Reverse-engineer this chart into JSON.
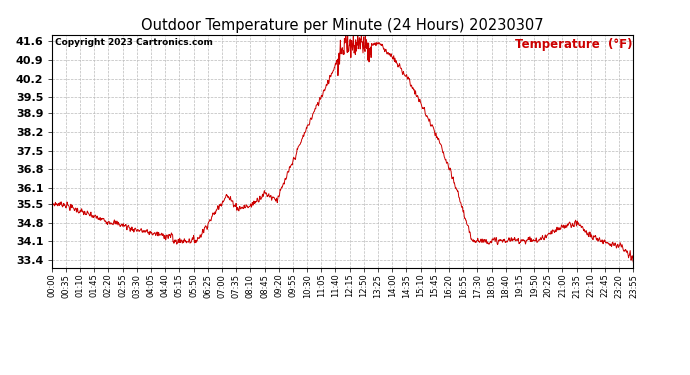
{
  "title": "Outdoor Temperature per Minute (24 Hours) 20230307",
  "copyright_text": "Copyright 2023 Cartronics.com",
  "legend_label": "Temperature  (°F)",
  "line_color": "#cc0000",
  "background_color": "#ffffff",
  "grid_color": "#bbbbbb",
  "yticks": [
    33.4,
    34.1,
    34.8,
    35.5,
    36.1,
    36.8,
    37.5,
    38.2,
    38.9,
    39.5,
    40.2,
    40.9,
    41.6
  ],
  "ylim": [
    33.1,
    41.85
  ],
  "xtick_labels": [
    "00:00",
    "00:35",
    "01:10",
    "01:45",
    "02:20",
    "02:55",
    "03:30",
    "04:05",
    "04:40",
    "05:15",
    "05:50",
    "06:25",
    "07:00",
    "07:35",
    "08:10",
    "08:45",
    "09:20",
    "09:55",
    "10:30",
    "11:05",
    "11:40",
    "12:15",
    "12:50",
    "13:25",
    "14:00",
    "14:35",
    "15:10",
    "15:45",
    "16:20",
    "16:55",
    "17:30",
    "18:05",
    "18:40",
    "19:15",
    "19:50",
    "20:25",
    "21:00",
    "21:35",
    "22:10",
    "22:45",
    "23:20",
    "23:55"
  ],
  "num_points": 1440,
  "figsize": [
    6.9,
    3.75
  ],
  "dpi": 100
}
